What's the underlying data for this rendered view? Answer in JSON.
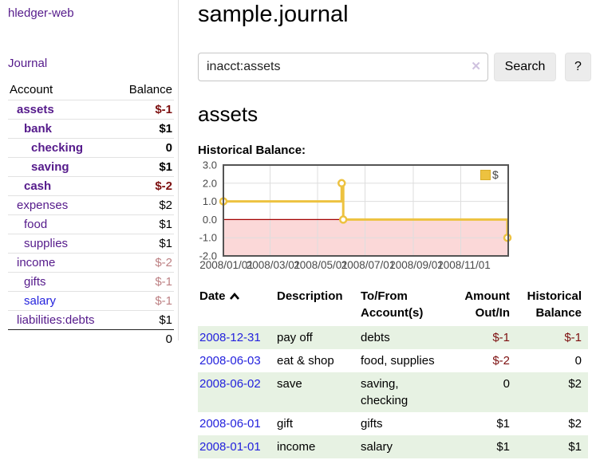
{
  "app": {
    "brand": "hledger-web",
    "nav_journal": "Journal"
  },
  "sidebar": {
    "headers": {
      "account": "Account",
      "balance": "Balance"
    },
    "accounts": [
      {
        "name": "assets",
        "indent": 1,
        "matched": true,
        "balance": "$-1",
        "balance_class": "neg-strong"
      },
      {
        "name": "bank",
        "indent": 2,
        "matched": true,
        "balance": "$1",
        "balance_class": ""
      },
      {
        "name": "checking",
        "indent": 3,
        "matched": true,
        "balance": "0",
        "balance_class": ""
      },
      {
        "name": "saving",
        "indent": 3,
        "matched": true,
        "balance": "$1",
        "balance_class": ""
      },
      {
        "name": "cash",
        "indent": 2,
        "matched": true,
        "balance": "$-2",
        "balance_class": "neg-strong"
      },
      {
        "name": "expenses",
        "indent": 1,
        "matched": false,
        "balance": "$2",
        "balance_class": ""
      },
      {
        "name": "food",
        "indent": 2,
        "matched": false,
        "balance": "$1",
        "balance_class": ""
      },
      {
        "name": "supplies",
        "indent": 2,
        "matched": false,
        "balance": "$1",
        "balance_class": ""
      },
      {
        "name": "income",
        "indent": 1,
        "matched": false,
        "balance": "$-2",
        "balance_class": "neg-muted"
      },
      {
        "name": "gifts",
        "indent": 2,
        "matched": false,
        "balance": "$-1",
        "balance_class": "neg-muted"
      },
      {
        "name": "salary",
        "indent": 2,
        "matched": false,
        "balance": "$-1",
        "balance_class": "neg-muted",
        "link_blue": true
      },
      {
        "name": "liabilities:debts",
        "indent": 1,
        "matched": false,
        "balance": "$1",
        "balance_class": ""
      }
    ],
    "total": "0"
  },
  "header": {
    "title": "sample.journal"
  },
  "search": {
    "value": "inacct:assets",
    "placeholder": "",
    "clear_icon": "✕",
    "button_label": "Search",
    "help_label": "?"
  },
  "account_page": {
    "heading": "assets",
    "chart_label": "Historical Balance:"
  },
  "chart_data": {
    "type": "line",
    "step": true,
    "title": "Historical Balance:",
    "series": [
      {
        "name": "$",
        "color": "#edc240",
        "points": [
          [
            "2008-01-01",
            1
          ],
          [
            "2008-06-01",
            2
          ],
          [
            "2008-06-03",
            0
          ],
          [
            "2008-12-31",
            -1
          ]
        ]
      }
    ],
    "legend": {
      "position": "top-right",
      "entries": [
        {
          "label": "$",
          "color": "#edc240"
        }
      ]
    },
    "x_ticks": [
      {
        "label": "2008/01/01",
        "day": 0
      },
      {
        "label": "2008/03/01",
        "day": 60
      },
      {
        "label": "2008/05/01",
        "day": 121
      },
      {
        "label": "2008/07/01",
        "day": 182
      },
      {
        "label": "2008/09/01",
        "day": 244
      },
      {
        "label": "2008/11/01",
        "day": 305
      }
    ],
    "x_range_days": [
      0,
      366
    ],
    "x_epoch": "2008-01-01",
    "y_ticks": [
      3.0,
      2.0,
      1.0,
      0.0,
      -1.0,
      -2.0
    ],
    "ylim": [
      -2,
      3
    ],
    "grid": true,
    "negative_region_fill": "#fbd8d8",
    "zero_line_color": "#a40000",
    "grid_color": "#dedede",
    "border_color": "#545454",
    "tick_label_color": "#484848"
  },
  "register_table": {
    "headers": {
      "date": "Date",
      "description": "Description",
      "tofrom_line1": "To/From",
      "tofrom_line2": "Account(s)",
      "amount_line1": "Amount",
      "amount_line2": "Out/In",
      "hist_line1": "Historical",
      "hist_line2": "Balance"
    },
    "rows": [
      {
        "date": "2008-12-31",
        "description": "pay off",
        "accounts": "debts",
        "amount": "$-1",
        "amount_neg": true,
        "balance": "$-1",
        "balance_neg": true,
        "shaded": true
      },
      {
        "date": "2008-06-03",
        "description": "eat & shop",
        "accounts": "food, supplies",
        "amount": "$-2",
        "amount_neg": true,
        "balance": "0",
        "balance_neg": false,
        "shaded": false
      },
      {
        "date": "2008-06-02",
        "description": "save",
        "accounts": "saving, checking",
        "amount": "0",
        "amount_neg": false,
        "balance": "$2",
        "balance_neg": false,
        "shaded": true
      },
      {
        "date": "2008-06-01",
        "description": "gift",
        "accounts": "gifts",
        "amount": "$1",
        "amount_neg": false,
        "balance": "$2",
        "balance_neg": false,
        "shaded": false
      },
      {
        "date": "2008-01-01",
        "description": "income",
        "accounts": "salary",
        "amount": "$1",
        "amount_neg": false,
        "balance": "$1",
        "balance_neg": false,
        "shaded": true
      }
    ]
  },
  "colors": {
    "link_purple": "#551a8b",
    "link_blue": "#2422dd",
    "negative_strong": "#7d1010",
    "negative_muted": "#bd8083",
    "row_stripe_green": "#e7f2e3",
    "series_yellow": "#edc240"
  }
}
